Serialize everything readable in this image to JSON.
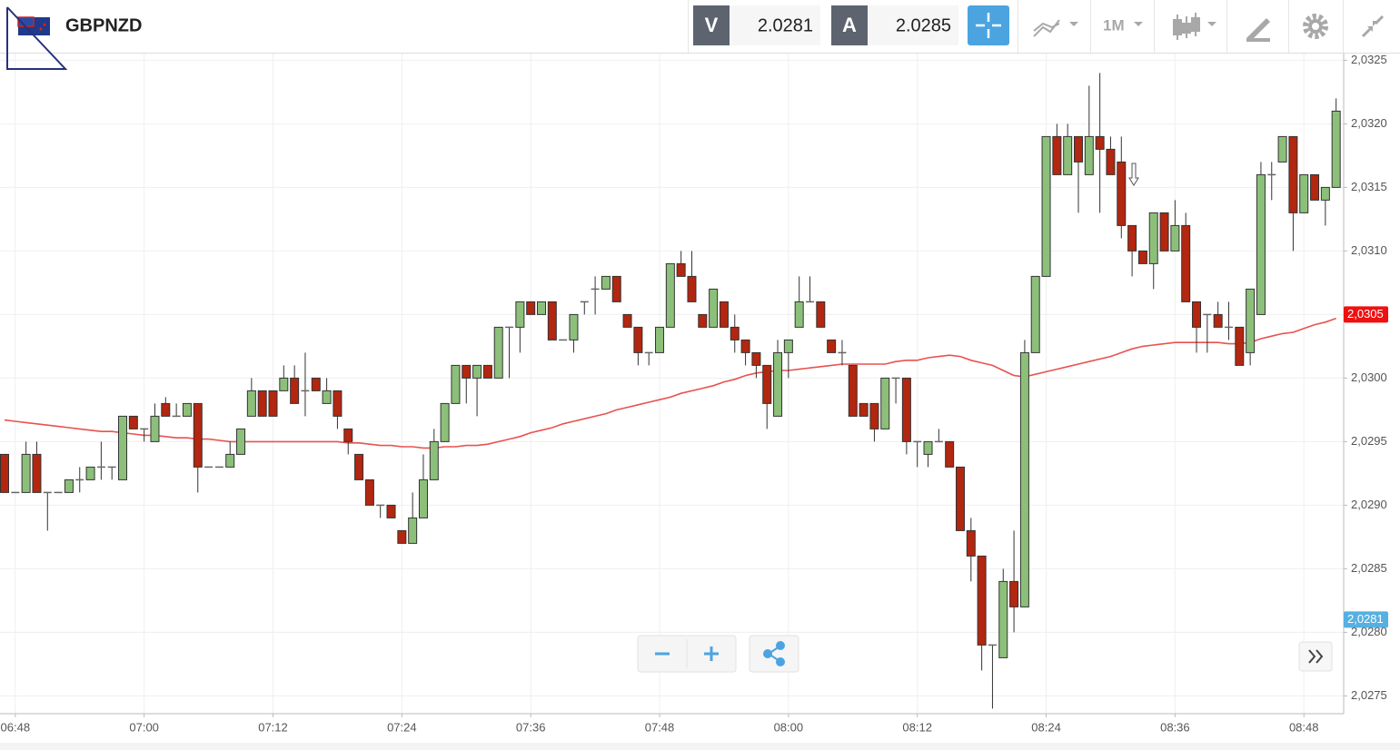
{
  "header": {
    "symbol": "GBPNZD",
    "sell_label": "V",
    "sell_price": "2.0281",
    "buy_label": "A",
    "buy_price": "2.0285",
    "timeframe": "1M"
  },
  "chart_data": {
    "type": "candlestick",
    "categories": [
      null,
      "06:48",
      null,
      null,
      null,
      null,
      null,
      null,
      null,
      null,
      null,
      null,
      null,
      "07:00",
      null,
      null,
      null,
      null,
      null,
      null,
      null,
      null,
      null,
      null,
      null,
      "07:12",
      null,
      null,
      null,
      null,
      null,
      null,
      null,
      null,
      null,
      null,
      null,
      "07:24",
      null,
      null,
      null,
      null,
      null,
      null,
      null,
      null,
      null,
      null,
      null,
      "07:36",
      null,
      null,
      null,
      null,
      null,
      null,
      null,
      null,
      null,
      null,
      null,
      "07:48",
      null,
      null,
      null,
      null,
      null,
      null,
      null,
      null,
      null,
      null,
      null,
      "08:00",
      null,
      null,
      null,
      null,
      null,
      null,
      null,
      null,
      null,
      null,
      null,
      "08:12",
      null,
      null,
      null,
      null,
      null,
      null,
      null,
      null,
      null,
      null,
      null,
      "08:24",
      null,
      null,
      null,
      null,
      null,
      null,
      null,
      null,
      null,
      null,
      null,
      "08:36",
      null,
      null,
      null,
      null,
      null,
      null,
      null,
      null,
      null,
      null,
      null,
      "08:48",
      null,
      null,
      null
    ],
    "ohlc": [
      [
        2.0294,
        2.0294,
        2.0291,
        2.0291
      ],
      [
        2.0291,
        2.0291,
        2.0291,
        2.0291
      ],
      [
        2.0291,
        2.0295,
        2.0291,
        2.0294
      ],
      [
        2.0294,
        2.0295,
        2.0291,
        2.0291
      ],
      [
        2.0291,
        2.0291,
        2.0288,
        2.0291
      ],
      [
        2.0291,
        2.0291,
        2.0291,
        2.0291
      ],
      [
        2.0291,
        2.0292,
        2.0291,
        2.0292
      ],
      [
        2.0292,
        2.0293,
        2.0291,
        2.0292
      ],
      [
        2.0292,
        2.0293,
        2.0292,
        2.0293
      ],
      [
        2.0293,
        2.0295,
        2.0292,
        2.0293
      ],
      [
        2.0293,
        2.0293,
        2.0292,
        2.0293
      ],
      [
        2.0292,
        2.0297,
        2.0292,
        2.0297
      ],
      [
        2.0297,
        2.0297,
        2.0296,
        2.0296
      ],
      [
        2.0296,
        2.0296,
        2.0295,
        2.0296
      ],
      [
        2.0295,
        2.0298,
        2.0295,
        2.0297
      ],
      [
        2.0298,
        2.02985,
        2.0297,
        2.0297
      ],
      [
        2.0297,
        2.0298,
        2.0297,
        2.0297
      ],
      [
        2.0297,
        2.0298,
        2.0297,
        2.0298
      ],
      [
        2.0298,
        2.0298,
        2.0291,
        2.0293
      ],
      [
        2.0293,
        2.0293,
        2.0293,
        2.0293
      ],
      [
        2.0293,
        2.0293,
        2.0293,
        2.0293
      ],
      [
        2.0293,
        2.0295,
        2.0293,
        2.0294
      ],
      [
        2.0294,
        2.0296,
        2.0294,
        2.0296
      ],
      [
        2.0297,
        2.03,
        2.0297,
        2.0299
      ],
      [
        2.0299,
        2.0299,
        2.0297,
        2.0297
      ],
      [
        2.0299,
        2.0299,
        2.0297,
        2.0297
      ],
      [
        2.0299,
        2.0301,
        2.0299,
        2.03
      ],
      [
        2.03,
        2.0301,
        2.0298,
        2.0298
      ],
      [
        2.0299,
        2.0302,
        2.0297,
        2.0299
      ],
      [
        2.03,
        2.03,
        2.0299,
        2.0299
      ],
      [
        2.0298,
        2.03,
        2.0298,
        2.0299
      ],
      [
        2.0299,
        2.0299,
        2.0296,
        2.0297
      ],
      [
        2.0296,
        2.0296,
        2.0294,
        2.0295
      ],
      [
        2.0294,
        2.0294,
        2.0292,
        2.0292
      ],
      [
        2.0292,
        2.0292,
        2.029,
        2.029
      ],
      [
        2.029,
        2.029,
        2.0289,
        2.029
      ],
      [
        2.029,
        2.029,
        2.0289,
        2.0289
      ],
      [
        2.0288,
        2.0288,
        2.0287,
        2.0287
      ],
      [
        2.0287,
        2.0291,
        2.0287,
        2.0289
      ],
      [
        2.0289,
        2.0294,
        2.0289,
        2.0292
      ],
      [
        2.0292,
        2.0296,
        2.0292,
        2.0295
      ],
      [
        2.0295,
        2.0298,
        2.0295,
        2.0298
      ],
      [
        2.0298,
        2.0301,
        2.0298,
        2.0301
      ],
      [
        2.0301,
        2.0301,
        2.0298,
        2.03
      ],
      [
        2.03,
        2.0301,
        2.0297,
        2.0301
      ],
      [
        2.0301,
        2.0301,
        2.03,
        2.03
      ],
      [
        2.03,
        2.0304,
        2.03,
        2.0304
      ],
      [
        2.0304,
        2.0304,
        2.03,
        2.0304
      ],
      [
        2.0304,
        2.0306,
        2.0302,
        2.0306
      ],
      [
        2.0306,
        2.0306,
        2.0305,
        2.0305
      ],
      [
        2.0305,
        2.0306,
        2.0305,
        2.0306
      ],
      [
        2.0306,
        2.0306,
        2.0303,
        2.0303
      ],
      [
        2.0303,
        2.0303,
        2.0303,
        2.0303
      ],
      [
        2.0303,
        2.0305,
        2.0302,
        2.0305
      ],
      [
        2.0306,
        2.0306,
        2.0305,
        2.0306
      ],
      [
        2.0307,
        2.0308,
        2.0305,
        2.0307
      ],
      [
        2.0307,
        2.0308,
        2.0307,
        2.0308
      ],
      [
        2.0308,
        2.0308,
        2.0306,
        2.0306
      ],
      [
        2.0305,
        2.0305,
        2.0304,
        2.0304
      ],
      [
        2.0304,
        2.0304,
        2.0301,
        2.0302
      ],
      [
        2.0302,
        2.0302,
        2.0301,
        2.0302
      ],
      [
        2.0302,
        2.0304,
        2.0302,
        2.0304
      ],
      [
        2.0304,
        2.0309,
        2.0304,
        2.0309
      ],
      [
        2.0309,
        2.031,
        2.0308,
        2.0308
      ],
      [
        2.0308,
        2.031,
        2.0306,
        2.0306
      ],
      [
        2.0305,
        2.0305,
        2.0304,
        2.0304
      ],
      [
        2.0304,
        2.0307,
        2.0304,
        2.0307
      ],
      [
        2.0306,
        2.0306,
        2.0304,
        2.0304
      ],
      [
        2.0304,
        2.0305,
        2.0302,
        2.0303
      ],
      [
        2.0303,
        2.0303,
        2.0301,
        2.0302
      ],
      [
        2.0302,
        2.0302,
        2.03,
        2.0301
      ],
      [
        2.0301,
        2.0301,
        2.0296,
        2.0298
      ],
      [
        2.0297,
        2.0303,
        2.0297,
        2.0302
      ],
      [
        2.0302,
        2.0303,
        2.03,
        2.0303
      ],
      [
        2.0304,
        2.0308,
        2.0304,
        2.0306
      ],
      [
        2.0306,
        2.0308,
        2.0306,
        2.0306
      ],
      [
        2.0306,
        2.0306,
        2.0304,
        2.0304
      ],
      [
        2.0303,
        2.0303,
        2.0302,
        2.0302
      ],
      [
        2.0302,
        2.0303,
        2.0301,
        2.0302
      ],
      [
        2.0301,
        2.0301,
        2.0297,
        2.0297
      ],
      [
        2.0298,
        2.0298,
        2.0297,
        2.0297
      ],
      [
        2.0298,
        2.0298,
        2.0295,
        2.0296
      ],
      [
        2.0296,
        2.03,
        2.0296,
        2.03
      ],
      [
        2.03,
        2.03,
        2.0298,
        2.03
      ],
      [
        2.03,
        2.03,
        2.0294,
        2.0295
      ],
      [
        2.0295,
        2.0295,
        2.0293,
        2.0295
      ],
      [
        2.0294,
        2.0295,
        2.0293,
        2.0295
      ],
      [
        2.0295,
        2.0296,
        2.0295,
        2.0295
      ],
      [
        2.0295,
        2.0295,
        2.0293,
        2.0293
      ],
      [
        2.0293,
        2.0293,
        2.0288,
        2.0288
      ],
      [
        2.0288,
        2.0289,
        2.0284,
        2.0286
      ],
      [
        2.0286,
        2.0286,
        2.0277,
        2.0279
      ],
      [
        2.0279,
        2.0279,
        2.0274,
        2.0279
      ],
      [
        2.0278,
        2.0285,
        2.0278,
        2.0284
      ],
      [
        2.0284,
        2.0288,
        2.028,
        2.0282
      ],
      [
        2.0282,
        2.0303,
        2.0282,
        2.0302
      ],
      [
        2.0302,
        2.0308,
        2.0302,
        2.0308
      ],
      [
        2.0308,
        2.0319,
        2.0308,
        2.0319
      ],
      [
        2.0319,
        2.032,
        2.0316,
        2.0316
      ],
      [
        2.0316,
        2.032,
        2.0316,
        2.0319
      ],
      [
        2.0319,
        2.0319,
        2.0313,
        2.0317
      ],
      [
        2.0316,
        2.0323,
        2.0316,
        2.0319
      ],
      [
        2.0319,
        2.0324,
        2.0313,
        2.0318
      ],
      [
        2.0318,
        2.0319,
        2.0316,
        2.0316
      ],
      [
        2.0317,
        2.0319,
        2.0311,
        2.0312
      ],
      [
        2.0312,
        2.0312,
        2.0308,
        2.031
      ],
      [
        2.031,
        2.031,
        2.0309,
        2.0309
      ],
      [
        2.0309,
        2.0313,
        2.0307,
        2.0313
      ],
      [
        2.0313,
        2.0313,
        2.031,
        2.031
      ],
      [
        2.031,
        2.0314,
        2.031,
        2.0312
      ],
      [
        2.0312,
        2.0313,
        2.0306,
        2.0306
      ],
      [
        2.0306,
        2.0306,
        2.0302,
        2.0304
      ],
      [
        2.0305,
        2.0305,
        2.0302,
        2.0305
      ],
      [
        2.0305,
        2.0306,
        2.0304,
        2.0304
      ],
      [
        2.0304,
        2.0306,
        2.0303,
        2.0304
      ],
      [
        2.0304,
        2.0304,
        2.0301,
        2.0301
      ],
      [
        2.0302,
        2.0307,
        2.0301,
        2.0307
      ],
      [
        2.0305,
        2.0317,
        2.0305,
        2.0316
      ],
      [
        2.0316,
        2.0317,
        2.0314,
        2.0316
      ],
      [
        2.0317,
        2.0319,
        2.0317,
        2.0319
      ],
      [
        2.0319,
        2.0319,
        2.031,
        2.0313
      ],
      [
        2.0313,
        2.0316,
        2.0313,
        2.0316
      ],
      [
        2.0316,
        2.0316,
        2.0314,
        2.0314
      ],
      [
        2.0314,
        2.0315,
        2.0312,
        2.0315
      ],
      [
        2.0315,
        2.0322,
        2.0315,
        2.0321
      ]
    ],
    "up_color": "#8cc07a",
    "down_color": "#b3260f",
    "doji_color": "#666666",
    "moving_average": {
      "color": "#e8524e",
      "values": [
        2.02967,
        2.02966,
        2.02965,
        2.02964,
        2.02963,
        2.02962,
        2.02961,
        2.0296,
        2.02959,
        2.02958,
        2.02958,
        2.02957,
        2.02956,
        2.02955,
        2.02955,
        2.02954,
        2.02953,
        2.02953,
        2.02952,
        2.02952,
        2.02951,
        2.0295,
        2.0295,
        2.0295,
        2.0295,
        2.0295,
        2.0295,
        2.0295,
        2.0295,
        2.0295,
        2.0295,
        2.0295,
        2.02949,
        2.02949,
        2.02948,
        2.02947,
        2.02947,
        2.02946,
        2.02946,
        2.02945,
        2.02945,
        2.02946,
        2.02946,
        2.02947,
        2.02947,
        2.02948,
        2.0295,
        2.02952,
        2.02954,
        2.02957,
        2.02959,
        2.02961,
        2.02964,
        2.02966,
        2.02968,
        2.0297,
        2.02972,
        2.02975,
        2.02977,
        2.02979,
        2.02981,
        2.02983,
        2.02985,
        2.02988,
        2.0299,
        2.02992,
        2.02994,
        2.02997,
        2.02999,
        2.03002,
        2.03004,
        2.03005,
        2.03006,
        2.03006,
        2.03007,
        2.03008,
        2.03009,
        2.0301,
        2.03011,
        2.03011,
        2.03011,
        2.03011,
        2.03011,
        2.03013,
        2.03014,
        2.03014,
        2.03016,
        2.03017,
        2.03018,
        2.03017,
        2.03014,
        2.03012,
        2.0301,
        2.03006,
        2.03002,
        2.03001,
        2.03003,
        2.03005,
        2.03007,
        2.03009,
        2.03011,
        2.03013,
        2.03015,
        2.03017,
        2.0302,
        2.03023,
        2.03025,
        2.03026,
        2.03027,
        2.03028,
        2.03028,
        2.03028,
        2.03028,
        2.03028,
        2.03027,
        2.03027,
        2.03028,
        2.03031,
        2.03033,
        2.03035,
        2.03036,
        2.03039,
        2.03042,
        2.03044,
        2.03047
      ]
    },
    "price_tags": [
      {
        "value": 2.0305,
        "label": "2,0305",
        "color": "#ee1111"
      },
      {
        "value": 2.0281,
        "label": "2,0281",
        "color": "#56b0e2"
      }
    ],
    "ylim": [
      2.02736,
      2.03256
    ],
    "yticks": [
      {
        "value": 2.0275,
        "label": "2,0275"
      },
      {
        "value": 2.028,
        "label": "2,0280"
      },
      {
        "value": 2.0285,
        "label": "2,0285"
      },
      {
        "value": 2.029,
        "label": "2,0290"
      },
      {
        "value": 2.0295,
        "label": "2,0295"
      },
      {
        "value": 2.03,
        "label": "2,0300"
      },
      {
        "value": 2.0305,
        "label": "2,0305"
      },
      {
        "value": 2.031,
        "label": "2,0310"
      },
      {
        "value": 2.0315,
        "label": "2,0315"
      },
      {
        "value": 2.032,
        "label": "2,0320"
      },
      {
        "value": 2.0325,
        "label": "2,0325"
      }
    ],
    "grid": true
  }
}
